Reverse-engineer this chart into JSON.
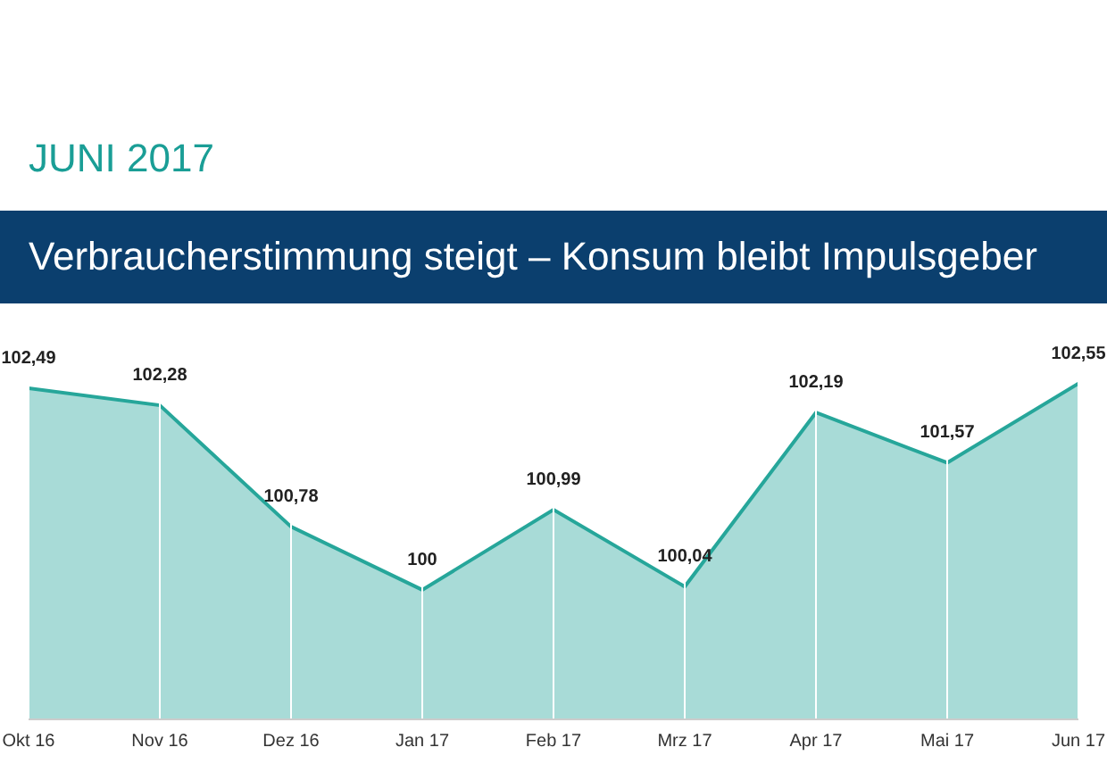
{
  "chart_data": {
    "type": "area",
    "title": "JUNI 2017",
    "subtitle": "Verbraucherstimmung steigt – Konsum bleibt Impulsgeber",
    "categories": [
      "Okt 16",
      "Nov 16",
      "Dez 16",
      "Jan 17",
      "Feb 17",
      "Mrz 17",
      "Apr 17",
      "Mai 17",
      "Jun 17"
    ],
    "series": [
      {
        "color": "#26a69a",
        "values": [
          102.49,
          102.28,
          100.78,
          100,
          100.99,
          100.04,
          102.19,
          101.57,
          102.55
        ],
        "value_labels": [
          "102,49",
          "102,28",
          "100,78",
          "100",
          "100,99",
          "100,04",
          "102,19",
          "101,57",
          "102,55"
        ]
      }
    ],
    "ylim": [
      98.4,
      102.7
    ],
    "tick_labels": "x",
    "grid": "x"
  }
}
